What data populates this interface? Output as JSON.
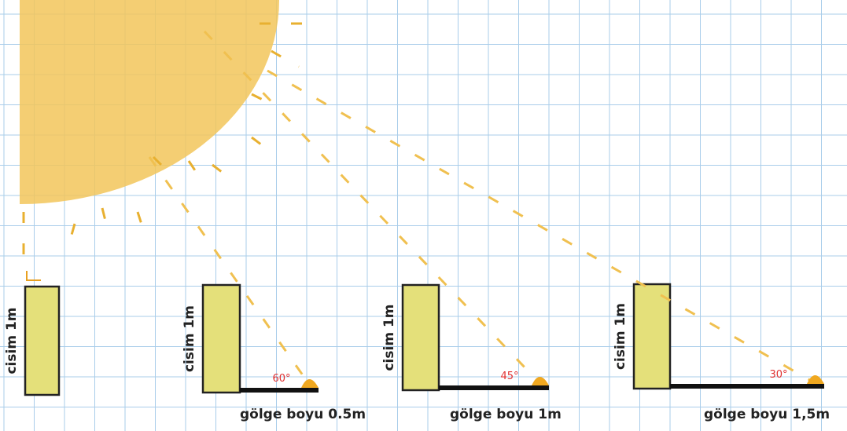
{
  "panels": [
    {
      "object_label": "cisim 1m"
    },
    {
      "object_label": "cisim 1m",
      "angle": "60°",
      "shadow_label": "gölge boyu 0.5m"
    },
    {
      "object_label": "cisim 1m",
      "angle": "45°",
      "shadow_label": "gölge boyu 1m"
    },
    {
      "object_label": "cisim 1m",
      "angle": "30°",
      "shadow_label": "gölge boyu 1,5m"
    }
  ]
}
